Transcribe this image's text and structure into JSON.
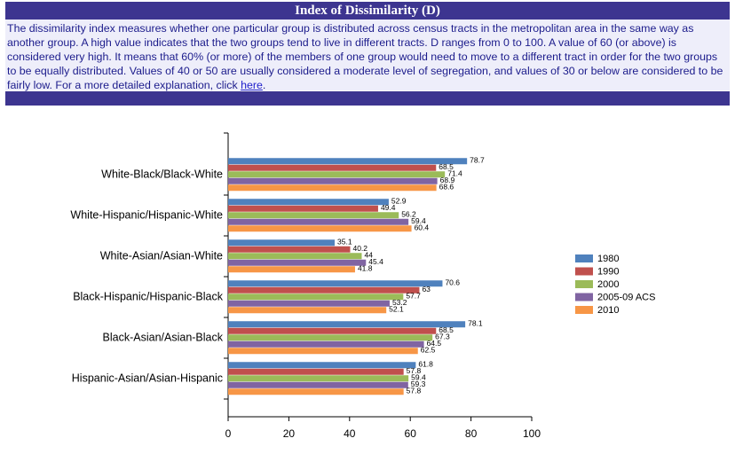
{
  "header": {
    "title": "Index of Dissimilarity (D)"
  },
  "description": {
    "text": "The dissimilarity index measures whether one particular group is distributed across census tracts in the metropolitan area in the same way as another group. A high value indicates that the two groups tend to live in different tracts. D ranges from 0 to 100. A value of 60 (or above) is considered very high. It means that 60% (or more) of the members of one group would need to move to a different tract in order for the two groups to be equally distributed. Values of 40 or 50 are usually considered a moderate level of segregation, and values of 30 or below are considered to be fairly low. For a more detailed explanation, click ",
    "link": "here",
    "end": "."
  },
  "chart_data": {
    "type": "hbar",
    "categories": [
      "White-Black/Black-White",
      "White-Hispanic/Hispanic-White",
      "White-Asian/Asian-White",
      "Black-Hispanic/Hispanic-Black",
      "Black-Asian/Asian-Black",
      "Hispanic-Asian/Asian-Hispanic"
    ],
    "series": [
      {
        "name": "1980",
        "color": "#4f81bd",
        "values": [
          78.7,
          52.9,
          35.1,
          70.6,
          78.1,
          61.8
        ]
      },
      {
        "name": "1990",
        "color": "#c0504d",
        "values": [
          68.5,
          49.4,
          40.2,
          63,
          68.5,
          57.8
        ]
      },
      {
        "name": "2000",
        "color": "#9bbb59",
        "values": [
          71.4,
          56.2,
          44,
          57.7,
          67.3,
          59.4
        ]
      },
      {
        "name": "2005-09 ACS",
        "color": "#8064a2",
        "values": [
          68.9,
          59.4,
          45.4,
          53.2,
          64.5,
          59.3
        ]
      },
      {
        "name": "2010",
        "color": "#f79646",
        "values": [
          68.6,
          60.4,
          41.8,
          52.1,
          62.5,
          57.8
        ]
      }
    ],
    "xlim": [
      0,
      100
    ],
    "xticks": [
      0,
      20,
      40,
      60,
      80,
      100
    ],
    "legend": "right"
  }
}
